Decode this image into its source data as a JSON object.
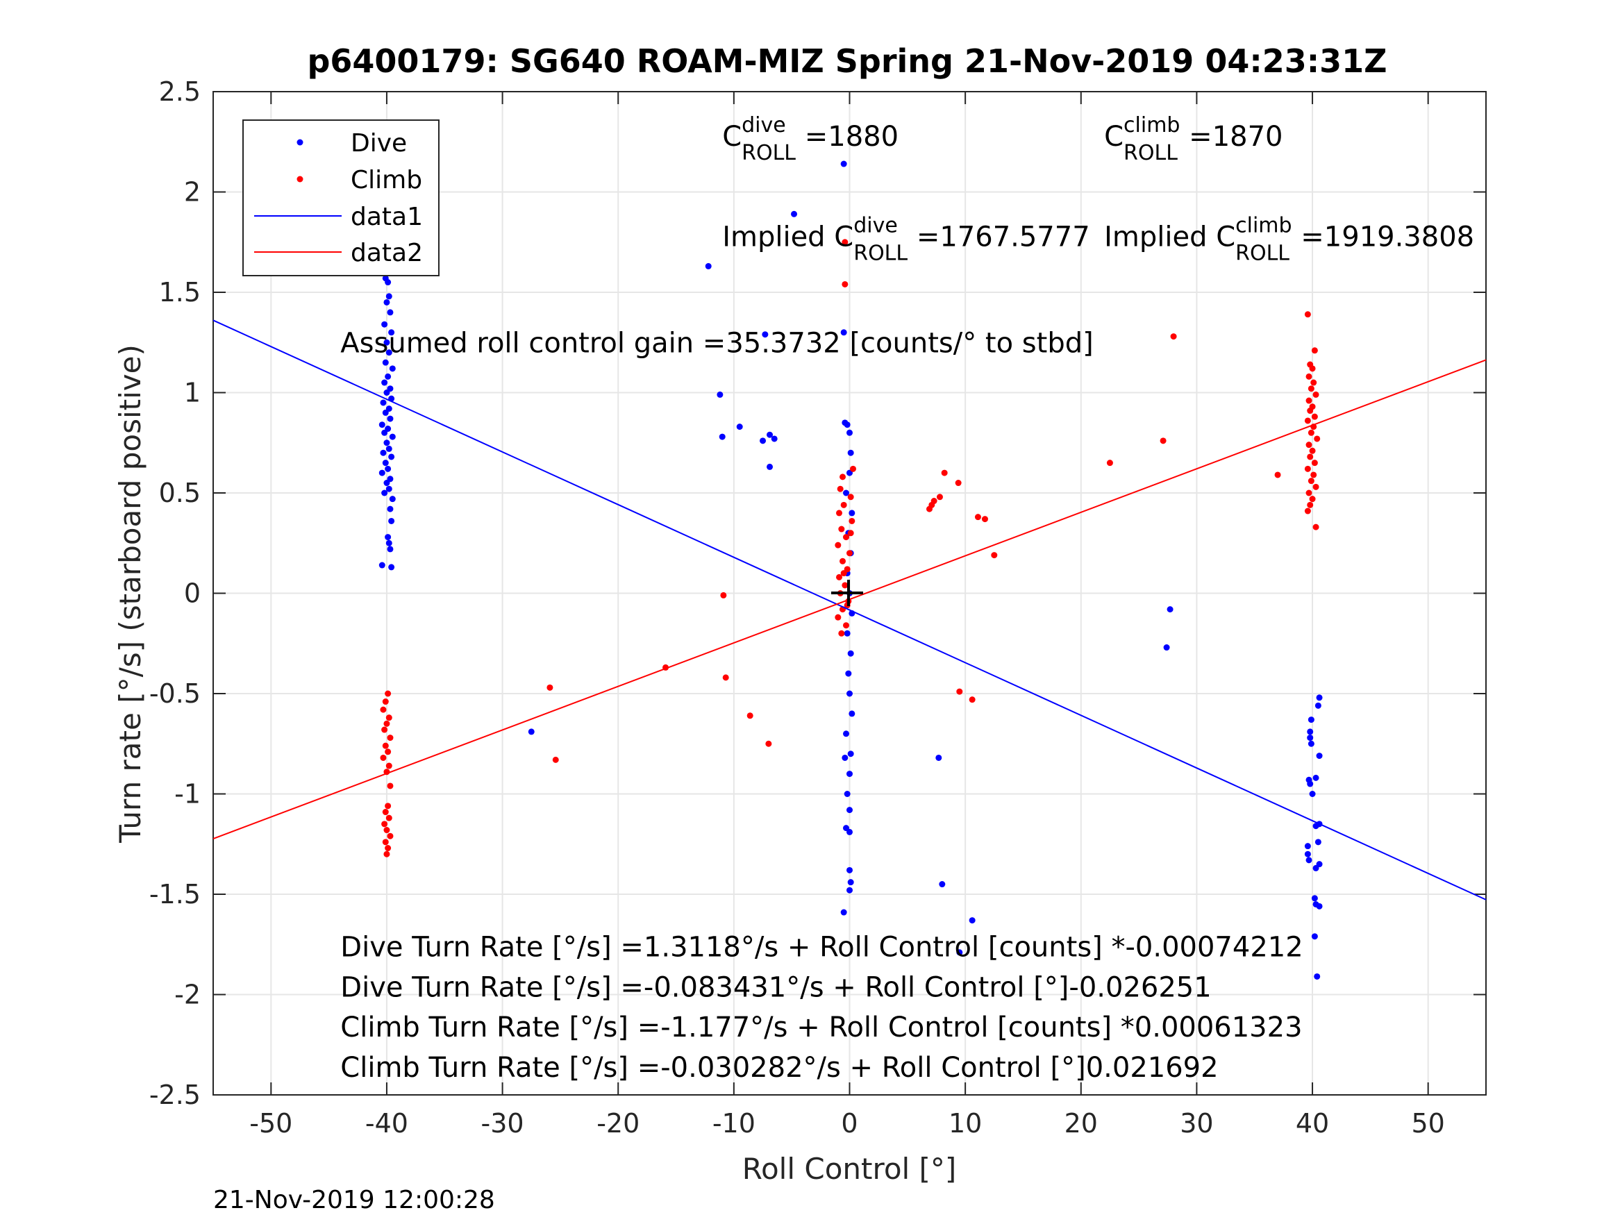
{
  "chart_data": {
    "type": "scatter",
    "title": "p6400179: SG640 ROAM-MIZ Spring 21-Nov-2019 04:23:31Z",
    "xlabel": "Roll Control [°]",
    "ylabel": "Turn rate [°/s] (starboard positive)",
    "xlim": [
      -55,
      55
    ],
    "ylim": [
      -2.5,
      2.5
    ],
    "xticks": [
      -50,
      -40,
      -30,
      -20,
      -10,
      0,
      10,
      20,
      30,
      40,
      50
    ],
    "xtick_labels": [
      "-50",
      "-40",
      "-30",
      "-20",
      "-10",
      "0",
      "10",
      "20",
      "30",
      "40",
      "50"
    ],
    "yticks": [
      -2.5,
      -2,
      -1.5,
      -1,
      -0.5,
      0,
      0.5,
      1,
      1.5,
      2,
      2.5
    ],
    "ytick_labels": [
      "-2.5",
      "-2",
      "-1.5",
      "-1",
      "-0.5",
      "0",
      "0.5",
      "1",
      "1.5",
      "2",
      "2.5"
    ],
    "grid": true,
    "legend_position": "top-left",
    "legend": [
      "Dive",
      "Climb",
      "data1",
      "data2"
    ],
    "series": [
      {
        "name": "Dive",
        "kind": "points",
        "color": "#0000ff",
        "points": [
          [
            -40.0,
            1.93
          ],
          [
            -39.8,
            1.86
          ],
          [
            -39.9,
            1.72
          ],
          [
            -39.7,
            1.64
          ],
          [
            -40.1,
            1.57
          ],
          [
            -39.9,
            1.55
          ],
          [
            -39.8,
            1.48
          ],
          [
            -40.0,
            1.45
          ],
          [
            -39.7,
            1.4
          ],
          [
            -40.2,
            1.34
          ],
          [
            -39.6,
            1.3
          ],
          [
            -40.0,
            1.25
          ],
          [
            -39.8,
            1.2
          ],
          [
            -40.1,
            1.15
          ],
          [
            -39.5,
            1.12
          ],
          [
            -39.9,
            1.08
          ],
          [
            -40.2,
            1.05
          ],
          [
            -39.7,
            1.02
          ],
          [
            -40.0,
            1.0
          ],
          [
            -39.6,
            0.97
          ],
          [
            -40.3,
            0.95
          ],
          [
            -39.8,
            0.92
          ],
          [
            -40.1,
            0.9
          ],
          [
            -39.7,
            0.87
          ],
          [
            -40.4,
            0.84
          ],
          [
            -39.9,
            0.82
          ],
          [
            -40.2,
            0.8
          ],
          [
            -39.5,
            0.78
          ],
          [
            -40.0,
            0.75
          ],
          [
            -39.8,
            0.72
          ],
          [
            -40.3,
            0.7
          ],
          [
            -39.6,
            0.68
          ],
          [
            -40.1,
            0.65
          ],
          [
            -39.9,
            0.62
          ],
          [
            -40.4,
            0.6
          ],
          [
            -39.7,
            0.57
          ],
          [
            -40.0,
            0.55
          ],
          [
            -39.8,
            0.52
          ],
          [
            -40.2,
            0.5
          ],
          [
            -39.5,
            0.47
          ],
          [
            -39.7,
            0.42
          ],
          [
            -39.6,
            0.36
          ],
          [
            -39.9,
            0.28
          ],
          [
            -39.8,
            0.25
          ],
          [
            -39.7,
            0.22
          ],
          [
            -40.4,
            0.14
          ],
          [
            -39.6,
            0.13
          ],
          [
            -12.2,
            1.63
          ],
          [
            -11.2,
            0.99
          ],
          [
            -11.0,
            0.78
          ],
          [
            -9.5,
            0.83
          ],
          [
            -7.3,
            1.29
          ],
          [
            -7.5,
            0.76
          ],
          [
            -6.9,
            0.79
          ],
          [
            -6.5,
            0.77
          ],
          [
            -6.9,
            0.63
          ],
          [
            -4.8,
            1.89
          ],
          [
            -0.5,
            2.14
          ],
          [
            -0.5,
            1.3
          ],
          [
            -0.4,
            0.85
          ],
          [
            -0.2,
            0.84
          ],
          [
            0.0,
            0.8
          ],
          [
            0.1,
            0.7
          ],
          [
            0.0,
            0.6
          ],
          [
            -0.3,
            0.5
          ],
          [
            0.2,
            0.4
          ],
          [
            -0.1,
            0.3
          ],
          [
            0.1,
            0.2
          ],
          [
            -0.2,
            0.1
          ],
          [
            0.0,
            0.0
          ],
          [
            0.2,
            -0.1
          ],
          [
            -0.2,
            -0.2
          ],
          [
            0.1,
            -0.3
          ],
          [
            -0.1,
            -0.4
          ],
          [
            0.0,
            -0.5
          ],
          [
            0.2,
            -0.6
          ],
          [
            -0.3,
            -0.7
          ],
          [
            0.1,
            -0.8
          ],
          [
            -0.4,
            -0.82
          ],
          [
            0.0,
            -0.9
          ],
          [
            -0.2,
            -1.0
          ],
          [
            0.0,
            -1.08
          ],
          [
            -0.3,
            -1.17
          ],
          [
            0.0,
            -1.19
          ],
          [
            0.0,
            -1.38
          ],
          [
            0.1,
            -1.44
          ],
          [
            0.0,
            -1.48
          ],
          [
            -0.5,
            -1.59
          ],
          [
            -27.5,
            -0.69
          ],
          [
            7.7,
            -0.82
          ],
          [
            8.0,
            -1.45
          ],
          [
            10.6,
            -1.63
          ],
          [
            9.5,
            -1.79
          ],
          [
            27.7,
            -0.08
          ],
          [
            27.4,
            -0.27
          ],
          [
            40.6,
            -0.52
          ],
          [
            40.5,
            -0.56
          ],
          [
            39.9,
            -0.63
          ],
          [
            39.8,
            -0.69
          ],
          [
            39.8,
            -0.72
          ],
          [
            39.9,
            -0.75
          ],
          [
            40.6,
            -0.81
          ],
          [
            39.7,
            -0.93
          ],
          [
            40.3,
            -0.92
          ],
          [
            39.8,
            -0.95
          ],
          [
            40.0,
            -1.0
          ],
          [
            40.6,
            -1.15
          ],
          [
            40.3,
            -1.16
          ],
          [
            40.5,
            -1.24
          ],
          [
            39.6,
            -1.26
          ],
          [
            39.6,
            -1.3
          ],
          [
            39.7,
            -1.33
          ],
          [
            40.3,
            -1.37
          ],
          [
            40.6,
            -1.35
          ],
          [
            40.2,
            -1.52
          ],
          [
            40.3,
            -1.55
          ],
          [
            40.6,
            -1.56
          ],
          [
            40.2,
            -1.71
          ],
          [
            40.4,
            -1.91
          ]
        ]
      },
      {
        "name": "Climb",
        "kind": "points",
        "color": "#ff0000",
        "points": [
          [
            -39.9,
            -0.5
          ],
          [
            -40.1,
            -0.54
          ],
          [
            -40.3,
            -0.58
          ],
          [
            -39.8,
            -0.62
          ],
          [
            -40.0,
            -0.65
          ],
          [
            -40.2,
            -0.68
          ],
          [
            -39.7,
            -0.72
          ],
          [
            -40.1,
            -0.76
          ],
          [
            -39.9,
            -0.79
          ],
          [
            -40.3,
            -0.82
          ],
          [
            -39.8,
            -0.86
          ],
          [
            -40.0,
            -0.89
          ],
          [
            -39.7,
            -0.96
          ],
          [
            -39.9,
            -1.06
          ],
          [
            -40.1,
            -1.09
          ],
          [
            -39.8,
            -1.12
          ],
          [
            -40.2,
            -1.15
          ],
          [
            -40.0,
            -1.18
          ],
          [
            -39.7,
            -1.21
          ],
          [
            -40.1,
            -1.24
          ],
          [
            -39.9,
            -1.27
          ],
          [
            -40.0,
            -1.3
          ],
          [
            -25.9,
            -0.47
          ],
          [
            -25.4,
            -0.83
          ],
          [
            -15.9,
            -0.37
          ],
          [
            -10.9,
            -0.01
          ],
          [
            -10.7,
            -0.42
          ],
          [
            -8.6,
            -0.61
          ],
          [
            -7.0,
            -0.75
          ],
          [
            -0.6,
            0.58
          ],
          [
            0.3,
            0.62
          ],
          [
            -0.8,
            0.52
          ],
          [
            0.1,
            0.48
          ],
          [
            -0.5,
            0.44
          ],
          [
            -0.9,
            0.4
          ],
          [
            0.2,
            0.36
          ],
          [
            -0.7,
            0.32
          ],
          [
            -0.3,
            0.28
          ],
          [
            -1.0,
            0.24
          ],
          [
            0.0,
            0.2
          ],
          [
            -0.6,
            0.16
          ],
          [
            -0.2,
            0.12
          ],
          [
            -0.9,
            0.08
          ],
          [
            -0.4,
            0.04
          ],
          [
            -0.8,
            0.0
          ],
          [
            -0.1,
            -0.04
          ],
          [
            -0.6,
            -0.08
          ],
          [
            -1.0,
            -0.12
          ],
          [
            -0.3,
            -0.16
          ],
          [
            -0.7,
            -0.2
          ],
          [
            -0.2,
            -0.06
          ],
          [
            -0.5,
            0.1
          ],
          [
            0.1,
            0.3
          ],
          [
            -0.4,
            1.54
          ],
          [
            -0.4,
            1.75
          ],
          [
            6.9,
            0.42
          ],
          [
            7.3,
            0.46
          ],
          [
            7.1,
            0.44
          ],
          [
            7.8,
            0.48
          ],
          [
            8.2,
            0.6
          ],
          [
            9.4,
            0.55
          ],
          [
            11.1,
            0.38
          ],
          [
            11.7,
            0.37
          ],
          [
            12.5,
            0.19
          ],
          [
            9.5,
            -0.49
          ],
          [
            10.6,
            -0.53
          ],
          [
            22.5,
            0.65
          ],
          [
            27.1,
            0.76
          ],
          [
            28.0,
            1.28
          ],
          [
            39.6,
            1.39
          ],
          [
            40.2,
            1.21
          ],
          [
            39.8,
            1.14
          ],
          [
            40.0,
            1.12
          ],
          [
            39.7,
            1.08
          ],
          [
            40.1,
            1.05
          ],
          [
            39.9,
            1.02
          ],
          [
            40.3,
            0.99
          ],
          [
            39.7,
            0.96
          ],
          [
            40.0,
            0.93
          ],
          [
            39.8,
            0.91
          ],
          [
            40.2,
            0.88
          ],
          [
            39.6,
            0.86
          ],
          [
            40.1,
            0.83
          ],
          [
            39.9,
            0.8
          ],
          [
            40.4,
            0.77
          ],
          [
            39.7,
            0.74
          ],
          [
            40.0,
            0.71
          ],
          [
            39.8,
            0.68
          ],
          [
            40.2,
            0.65
          ],
          [
            39.6,
            0.62
          ],
          [
            40.1,
            0.59
          ],
          [
            39.9,
            0.56
          ],
          [
            40.3,
            0.53
          ],
          [
            39.7,
            0.5
          ],
          [
            40.0,
            0.47
          ],
          [
            39.8,
            0.44
          ],
          [
            39.6,
            0.41
          ],
          [
            40.3,
            0.33
          ],
          [
            37.0,
            0.59
          ]
        ]
      },
      {
        "name": "data1",
        "kind": "line",
        "color": "#0000ff",
        "x": [
          -55,
          55
        ],
        "y": [
          1.3606,
          -1.5273
        ]
      },
      {
        "name": "data2",
        "kind": "line",
        "color": "#ff0000",
        "x": [
          -55,
          55
        ],
        "y": [
          -1.2234,
          1.1628
        ]
      }
    ],
    "annotations": [
      {
        "base": "C",
        "sup": "dive",
        "sub": "ROLL",
        "text": " =1880",
        "x": -11,
        "y": 2.23
      },
      {
        "base": "C",
        "sup": "climb",
        "sub": "ROLL",
        "text": " =1870",
        "x": 22,
        "y": 2.23
      },
      {
        "pre": "Implied ",
        "base": "C",
        "sup": "dive",
        "sub": "ROLL",
        "text": " =1767.5777",
        "x": -11,
        "y": 1.73
      },
      {
        "pre": "Implied ",
        "base": "C",
        "sup": "climb",
        "sub": "ROLL",
        "text": " =1919.3808",
        "x": 22,
        "y": 1.73
      },
      {
        "text": "Assumed roll control gain =35.3732 [counts/° to stbd]",
        "x": -44,
        "y": 1.2
      },
      {
        "text": "Dive Turn Rate [°/s] =1.3118°/s + Roll Control [counts] *-0.00074212",
        "x": -44,
        "y": -1.81
      },
      {
        "text": "Dive Turn Rate [°/s] =-0.083431°/s + Roll Control [°]-0.026251",
        "x": -44,
        "y": -2.01
      },
      {
        "text": "Climb Turn Rate [°/s] =-1.177°/s + Roll Control [counts] *0.00061323",
        "x": -44,
        "y": -2.21
      },
      {
        "text": "Climb Turn Rate [°/s] =-0.030282°/s + Roll Control [°]0.021692",
        "x": -44,
        "y": -2.41
      }
    ],
    "timestamp": "21-Nov-2019 12:00:28"
  }
}
